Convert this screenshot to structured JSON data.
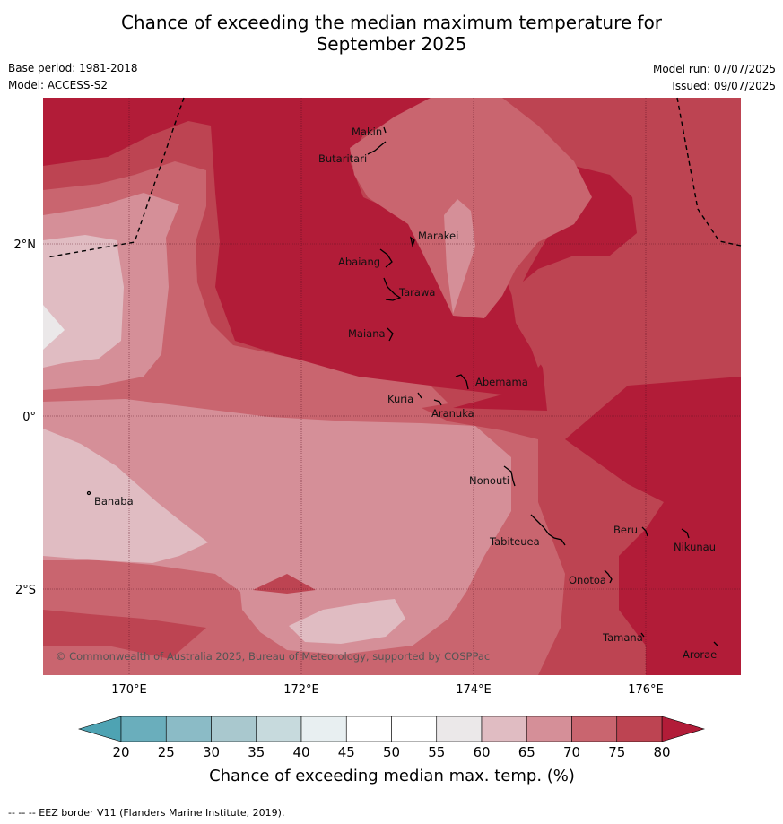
{
  "title_line1": "Chance of exceeding the median maximum temperature for",
  "title_line2": "September 2025",
  "base_period": "Base period: 1981-2018",
  "model": "Model: ACCESS-S2",
  "model_run": "Model run: 07/07/2025",
  "issued": "Issued: 09/07/2025",
  "lat_labels": [
    "2°N",
    "0°",
    "2°S"
  ],
  "lon_labels": [
    "170°E",
    "172°E",
    "174°E",
    "176°E"
  ],
  "places": [
    "Makin",
    "Butaritari",
    "Marakei",
    "Abaiang",
    "Tarawa",
    "Maiana",
    "Abemama",
    "Kuria",
    "Aranuka",
    "Nonouti",
    "Banaba",
    "Tabiteuea",
    "Beru",
    "Nikunau",
    "Onotoa",
    "Tamana",
    "Arorae"
  ],
  "copyright": "© Commonwealth of Australia 2025, Bureau of Meteorology, supported by COSPPac",
  "colorbar": {
    "ticks": [
      "20",
      "25",
      "30",
      "35",
      "40",
      "45",
      "50",
      "55",
      "60",
      "65",
      "70",
      "75",
      "80"
    ],
    "colors": [
      "#6aaebc",
      "#8bbbc6",
      "#a9c8ce",
      "#c7dadd",
      "#e8eff1",
      "#ffffff",
      "#ffffff",
      "#ebe8e9",
      "#e0bcc2",
      "#d58f98",
      "#c9656f",
      "#bd4452"
    ],
    "under_color": "#4ea3b3",
    "over_color": "#b21c38",
    "label": "Chance of exceeding median max. temp. (%)"
  },
  "footer": "-- -- -- EEZ border V11 (Flanders Marine Institute, 2019)."
}
